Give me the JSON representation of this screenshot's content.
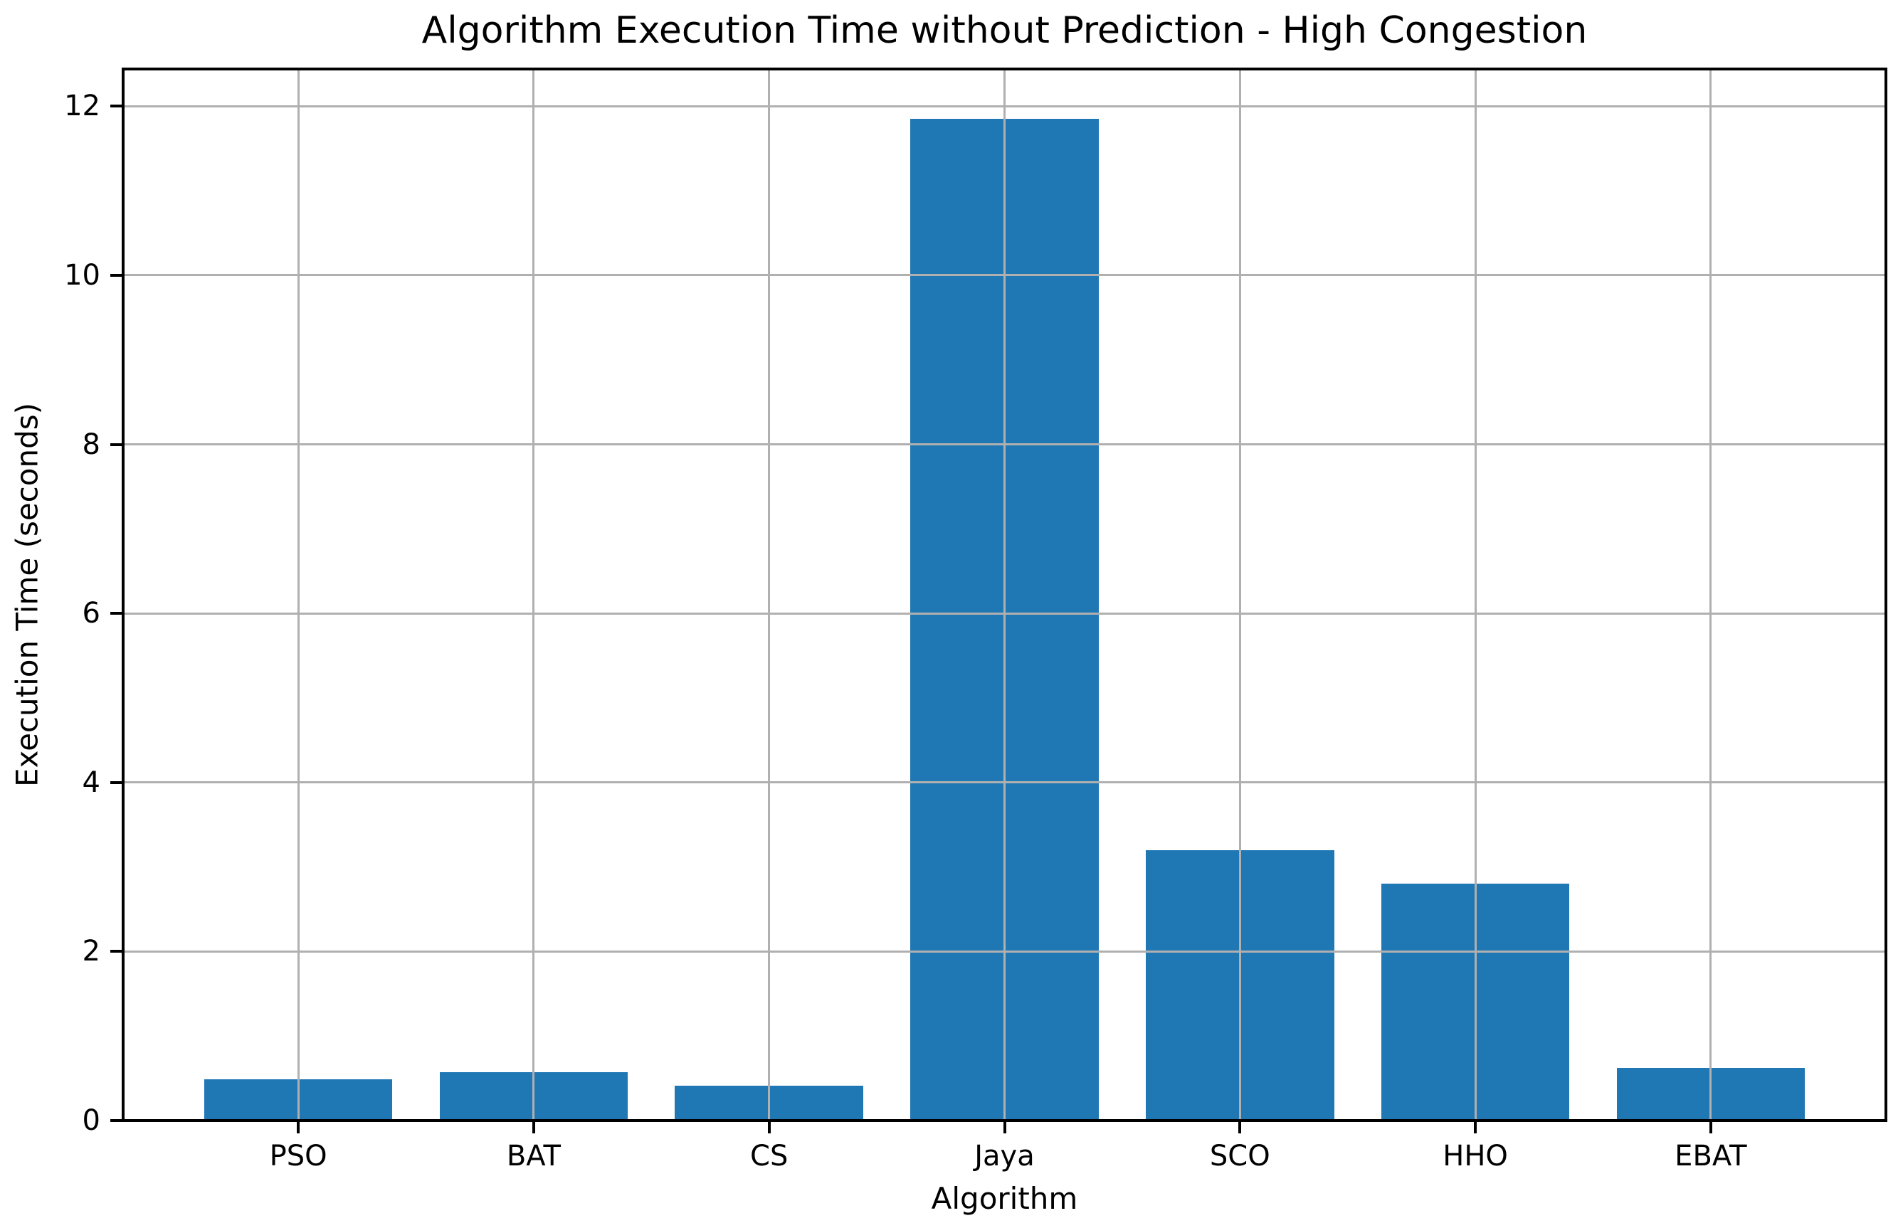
{
  "chart_data": {
    "type": "bar",
    "title": "Algorithm Execution Time without Prediction - High Congestion",
    "xlabel": "Algorithm",
    "ylabel": "Execution Time (seconds)",
    "categories": [
      "PSO",
      "BAT",
      "CS",
      "Jaya",
      "SCO",
      "HHO",
      "EBAT"
    ],
    "values": [
      0.49,
      0.57,
      0.41,
      11.85,
      3.2,
      2.8,
      0.62
    ],
    "yticks": [
      0,
      2,
      4,
      6,
      8,
      10,
      12
    ],
    "ylim": [
      0,
      12.44
    ],
    "bar_color": "#1f77b4",
    "grid": true,
    "grid_color": "#b0b0b0",
    "legend_position": "none"
  }
}
